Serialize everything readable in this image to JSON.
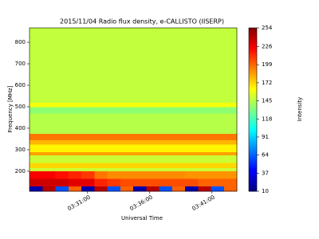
{
  "chart_data": {
    "type": "heatmap",
    "title": "2015/11/04  Radio flux density, e-CALLISTO (IISERP)",
    "xlabel": "Universal Time",
    "ylabel": "Frequency [MHz]",
    "colorbar_label": "Intensity",
    "colormap": "jet",
    "xlim": [
      12380,
      13380
    ],
    "xticks": [
      {
        "value": 12660,
        "label": "03:31:00"
      },
      {
        "value": 12960,
        "label": "03:36:00"
      },
      {
        "value": 13260,
        "label": "03:41:00"
      }
    ],
    "ylim": [
      107,
      867
    ],
    "yticks": [
      200,
      300,
      400,
      500,
      600,
      700,
      800
    ],
    "clim": [
      10,
      254
    ],
    "cticks": [
      10,
      37,
      64,
      91,
      118,
      145,
      172,
      199,
      226,
      254
    ],
    "xbins": [
      12380,
      12442.5,
      12505,
      12567.5,
      12630,
      12692.5,
      12755,
      12817.5,
      12880,
      12942.5,
      13005,
      13067.5,
      13130,
      13192.5,
      13255,
      13317.5,
      13380
    ],
    "ybins": [
      107,
      130,
      165,
      200,
      215,
      240,
      275,
      290,
      325,
      345,
      375,
      470,
      500,
      520,
      867
    ],
    "z": [
      [
        20,
        240,
        60,
        200,
        20,
        240,
        60,
        200,
        20,
        240,
        60,
        200,
        20,
        240,
        60,
        200
      ],
      [
        235,
        235,
        235,
        230,
        230,
        215,
        210,
        205,
        205,
        205,
        205,
        205,
        205,
        200,
        200,
        200
      ],
      [
        225,
        225,
        220,
        215,
        210,
        195,
        190,
        190,
        190,
        190,
        190,
        190,
        188,
        188,
        188,
        188
      ],
      [
        150,
        150,
        150,
        150,
        150,
        150,
        150,
        150,
        150,
        150,
        150,
        150,
        150,
        150,
        150,
        150
      ],
      [
        172,
        172,
        172,
        172,
        172,
        172,
        172,
        172,
        172,
        172,
        172,
        172,
        172,
        172,
        172,
        172
      ],
      [
        150,
        150,
        150,
        150,
        150,
        150,
        150,
        150,
        150,
        150,
        150,
        150,
        150,
        150,
        150,
        150
      ],
      [
        185,
        185,
        185,
        185,
        185,
        185,
        185,
        185,
        185,
        185,
        185,
        185,
        185,
        185,
        185,
        185
      ],
      [
        165,
        165,
        165,
        165,
        165,
        165,
        165,
        165,
        165,
        165,
        165,
        165,
        165,
        165,
        165,
        165
      ],
      [
        180,
        180,
        180,
        180,
        180,
        180,
        180,
        180,
        180,
        180,
        180,
        180,
        180,
        180,
        180,
        180
      ],
      [
        195,
        195,
        195,
        195,
        195,
        195,
        195,
        195,
        195,
        195,
        195,
        195,
        195,
        195,
        195,
        195
      ],
      [
        145,
        145,
        145,
        145,
        145,
        145,
        145,
        145,
        145,
        145,
        145,
        145,
        145,
        145,
        145,
        145
      ],
      [
        135,
        135,
        135,
        135,
        135,
        135,
        135,
        135,
        135,
        135,
        135,
        135,
        135,
        135,
        135,
        135
      ],
      [
        160,
        160,
        160,
        160,
        160,
        160,
        160,
        160,
        160,
        160,
        160,
        160,
        160,
        160,
        160,
        160
      ],
      [
        148,
        148,
        148,
        148,
        148,
        148,
        148,
        148,
        148,
        148,
        148,
        148,
        148,
        148,
        148,
        148
      ]
    ]
  }
}
